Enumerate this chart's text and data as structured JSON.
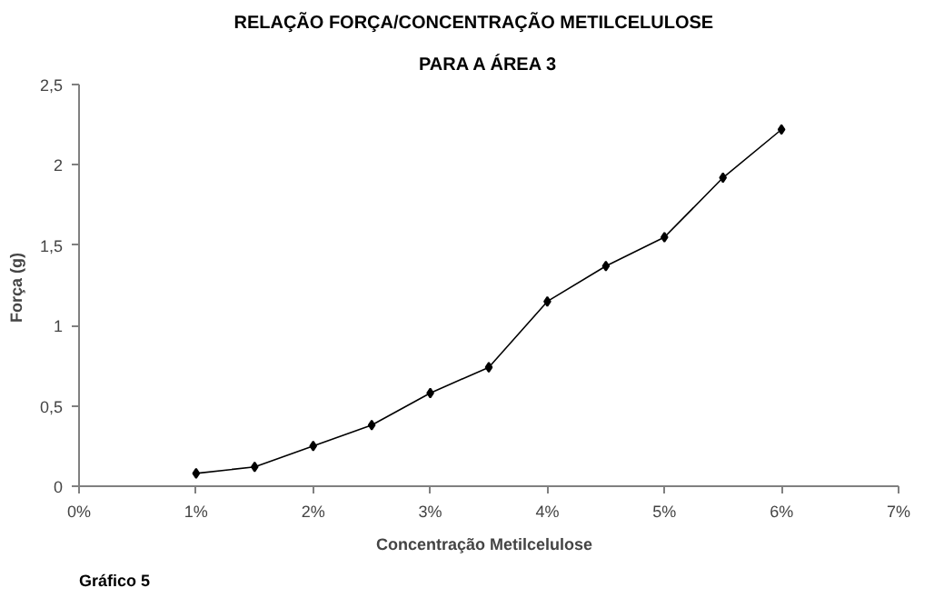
{
  "chart_data": {
    "type": "line",
    "title": "RELAÇÃO    FORÇA/CONCENTRAÇÃO    METILCELULOSE",
    "subtitle": "PARA A ÁREA 3",
    "xlabel": "Concentração   Metilcelulose",
    "ylabel": "Força  (g)",
    "x": [
      1,
      1.5,
      2,
      2.5,
      3,
      3.5,
      4,
      4.5,
      5,
      5.5,
      6
    ],
    "series": [
      {
        "color": "#000000",
        "values": [
          0.08,
          0.12,
          0.25,
          0.38,
          0.58,
          0.74,
          1.15,
          1.37,
          1.55,
          1.92,
          2.22
        ]
      }
    ],
    "xlim": [
      0,
      7
    ],
    "xticks": [
      {
        "value": 0,
        "label": "0%"
      },
      {
        "value": 1,
        "label": "1%"
      },
      {
        "value": 2,
        "label": "2%"
      },
      {
        "value": 3,
        "label": "3%"
      },
      {
        "value": 4,
        "label": "4%"
      },
      {
        "value": 5,
        "label": "5%"
      },
      {
        "value": 6,
        "label": "6%"
      },
      {
        "value": 7,
        "label": "7%"
      }
    ],
    "ylim": [
      0,
      2.5
    ],
    "yticks": [
      0,
      {
        "value": 0.5,
        "label": "0,5"
      },
      1,
      {
        "value": 1.5,
        "label": "1,5"
      },
      2,
      {
        "value": 2.5,
        "label": "2,5"
      }
    ],
    "marker": "diamond",
    "grid": false,
    "annotations": [
      "Gráfico 5"
    ]
  }
}
